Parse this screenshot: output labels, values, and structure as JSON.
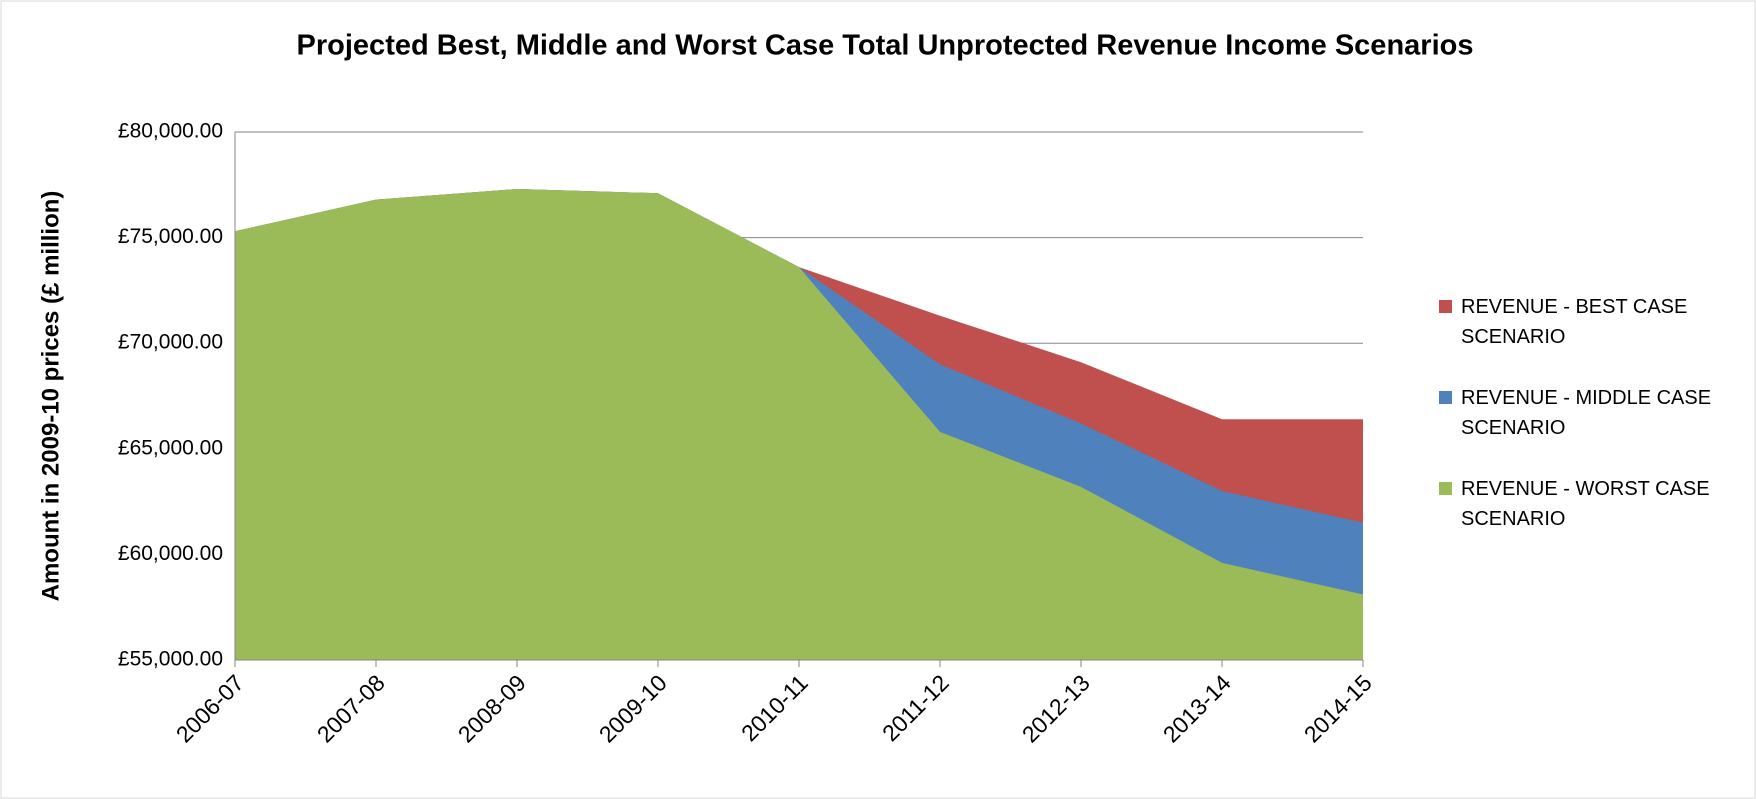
{
  "chart_data": {
    "type": "area",
    "title": "Projected Best, Middle and Worst Case Total Unprotected Revenue Income Scenarios",
    "y_label": "Amount in 2009-10 prices (£ million)",
    "categories": [
      "2006-07",
      "2007-08",
      "2008-09",
      "2009-10",
      "2010-11",
      "2011-12",
      "2012-13",
      "2013-14",
      "2014-15"
    ],
    "series": [
      {
        "name": "REVENUE - BEST CASE SCENARIO",
        "color": "#c0504d",
        "values": [
          75300,
          76800,
          77300,
          77100,
          73600,
          71300,
          69100,
          66400,
          66400
        ]
      },
      {
        "name": "REVENUE - MIDDLE CASE SCENARIO",
        "color": "#4f81bd",
        "values": [
          75300,
          76800,
          77300,
          77100,
          73600,
          69000,
          66200,
          63000,
          61500
        ]
      },
      {
        "name": "REVENUE - WORST CASE SCENARIO",
        "color": "#9bbb59",
        "values": [
          75300,
          76800,
          77300,
          77100,
          73600,
          65800,
          63200,
          59600,
          58100
        ]
      }
    ],
    "ylim": [
      55000,
      80000
    ],
    "yticks": [
      {
        "value": 55000,
        "label": "£55,000.00"
      },
      {
        "value": 60000,
        "label": "£60,000.00"
      },
      {
        "value": 65000,
        "label": "£65,000.00"
      },
      {
        "value": 70000,
        "label": "£70,000.00"
      },
      {
        "value": 75000,
        "label": "£75,000.00"
      },
      {
        "value": 80000,
        "label": "£80,000.00"
      }
    ],
    "grid": true,
    "legend": "right"
  }
}
